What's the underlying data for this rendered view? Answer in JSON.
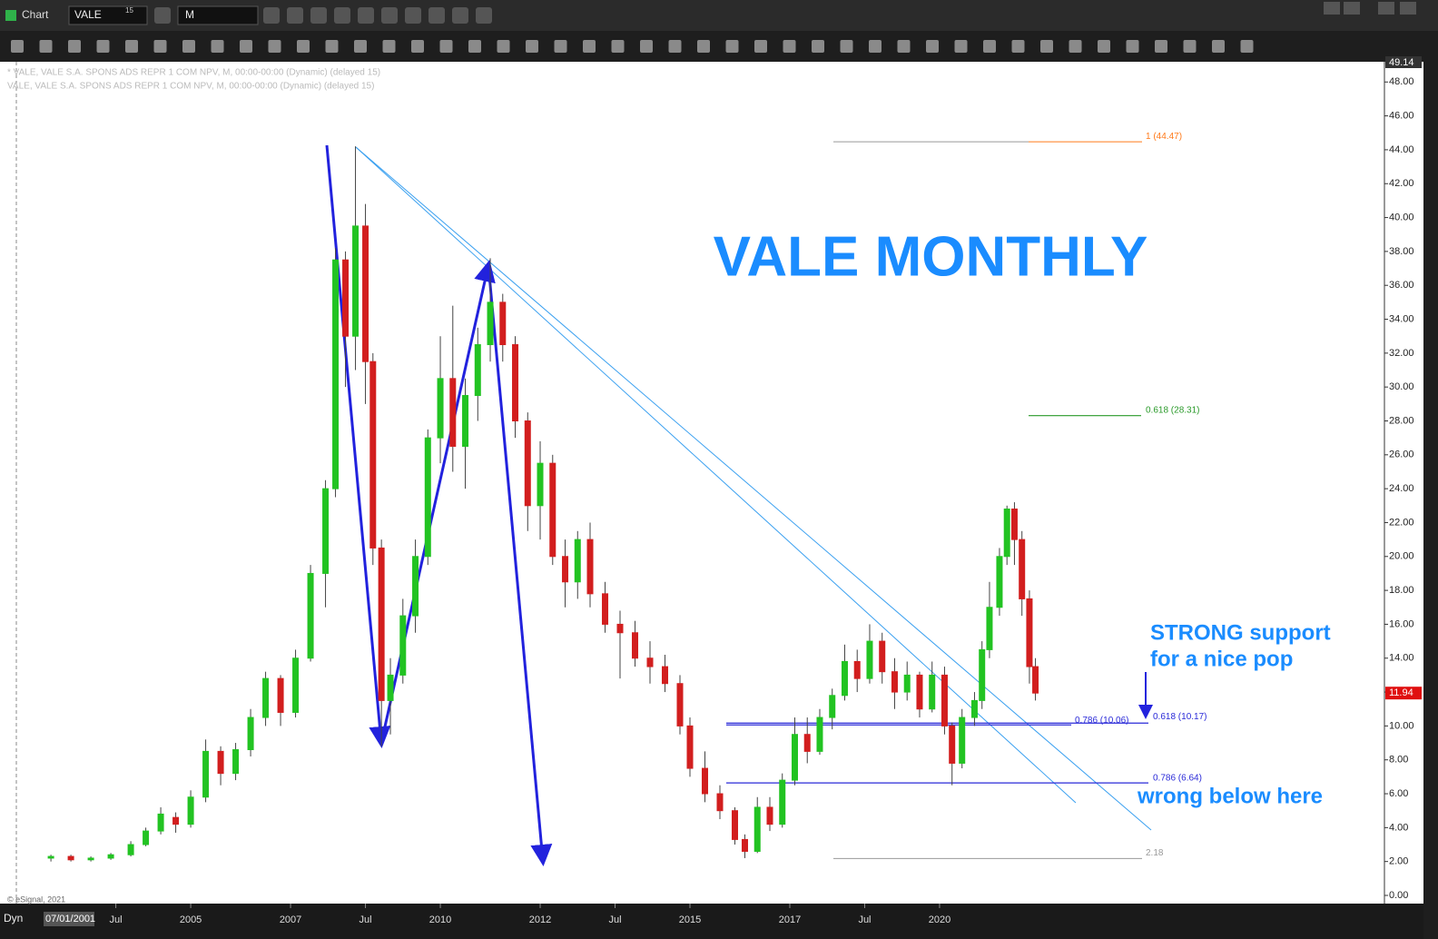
{
  "toolbar": {
    "app_title": "Chart",
    "symbol": "VALE",
    "symbol_badge": "15",
    "interval": "M"
  },
  "footer": {
    "mode": "Dyn",
    "start_date": "07/01/2001",
    "copyright": "© eSignal, 2021"
  },
  "chart_data": {
    "type": "candlestick",
    "title": "VALE MONTHLY",
    "legend_lines": [
      "* VALE, VALE S.A. SPONS ADS REPR 1 COM NPV, M, 00:00-00:00 (Dynamic) (delayed 15)",
      "VALE, VALE S.A. SPONS ADS REPR 1 COM NPV, M, 00:00-00:00 (Dynamic) (delayed 15)"
    ],
    "annotations": [
      "STRONG support",
      "for a nice pop",
      "wrong below here"
    ],
    "up_color": "#22c322",
    "down_color": "#d21e1e",
    "xlim": [
      2001.18,
      2028.82
    ],
    "xticks": [
      {
        "value": 2003.5,
        "label": "Jul"
      },
      2005,
      2007,
      {
        "value": 2008.5,
        "label": "Jul"
      },
      2010,
      2012,
      {
        "value": 2013.5,
        "label": "Jul"
      },
      2015,
      2017,
      {
        "value": 2018.5,
        "label": "Jul"
      },
      2020
    ],
    "ylim": [
      0,
      49.14
    ],
    "yticks": [
      {
        "value": 0,
        "label": "0.00"
      },
      {
        "value": 2,
        "label": "2.00"
      },
      {
        "value": 4,
        "label": "4.00"
      },
      {
        "value": 6,
        "label": "6.00"
      },
      {
        "value": 8,
        "label": "8.00"
      },
      {
        "value": 10,
        "label": "10.00"
      },
      {
        "value": 12,
        "label": "12.00"
      },
      {
        "value": 14,
        "label": "14.00"
      },
      {
        "value": 16,
        "label": "16.00"
      },
      {
        "value": 18,
        "label": "18.00"
      },
      {
        "value": 20,
        "label": "20.00"
      },
      {
        "value": 22,
        "label": "22.00"
      },
      {
        "value": 24,
        "label": "24.00"
      },
      {
        "value": 26,
        "label": "26.00"
      },
      {
        "value": 28,
        "label": "28.00"
      },
      {
        "value": 30,
        "label": "30.00"
      },
      {
        "value": 32,
        "label": "32.00"
      },
      {
        "value": 34,
        "label": "34.00"
      },
      {
        "value": 36,
        "label": "36.00"
      },
      {
        "value": 38,
        "label": "38.00"
      },
      {
        "value": 40,
        "label": "40.00"
      },
      {
        "value": 42,
        "label": "42.00"
      },
      {
        "value": 44,
        "label": "44.00"
      },
      {
        "value": 46,
        "label": "46.00"
      },
      {
        "value": 48,
        "label": "48.00"
      }
    ],
    "last_price": 11.94,
    "fib_levels": [
      {
        "value": 44.47,
        "label": "1 (44.47)",
        "color": "#ff7a1a"
      },
      {
        "value": 28.31,
        "label": "0.618 (28.31)",
        "color": "#2a9a2a"
      },
      {
        "value": 10.06,
        "label": "0.786 (10.06)",
        "color": "#2a2ad8"
      },
      {
        "value": 10.17,
        "label": "0.618 (10.17)",
        "color": "#2a2ad8"
      },
      {
        "value": 6.64,
        "label": "0.786 (6.64)",
        "color": "#2a2ad8"
      },
      {
        "value": 2.18,
        "label": "2.18",
        "color": "#999999"
      }
    ],
    "x": [
      2002.2,
      2002.6,
      2003.0,
      2003.4,
      2003.8,
      2004.1,
      2004.4,
      2004.7,
      2005.0,
      2005.3,
      2005.6,
      2005.9,
      2006.2,
      2006.5,
      2006.8,
      2007.1,
      2007.4,
      2007.7,
      2007.9,
      2008.1,
      2008.3,
      2008.5,
      2008.65,
      2008.82,
      2009.0,
      2009.25,
      2009.5,
      2009.75,
      2010.0,
      2010.25,
      2010.5,
      2010.75,
      2011.0,
      2011.25,
      2011.5,
      2011.75,
      2012.0,
      2012.25,
      2012.5,
      2012.75,
      2013.0,
      2013.3,
      2013.6,
      2013.9,
      2014.2,
      2014.5,
      2014.8,
      2015.0,
      2015.3,
      2015.6,
      2015.9,
      2016.1,
      2016.35,
      2016.6,
      2016.85,
      2017.1,
      2017.35,
      2017.6,
      2017.85,
      2018.1,
      2018.35,
      2018.6,
      2018.85,
      2019.1,
      2019.35,
      2019.6,
      2019.85,
      2020.1,
      2020.25,
      2020.45,
      2020.7,
      2020.85,
      2021.0,
      2021.2,
      2021.35,
      2021.5,
      2021.65,
      2021.8,
      2021.92
    ],
    "open": [
      2.2,
      2.3,
      2.1,
      2.2,
      2.4,
      3.0,
      3.8,
      4.6,
      4.2,
      5.8,
      8.5,
      7.2,
      8.6,
      10.5,
      12.8,
      10.8,
      14.0,
      19.0,
      24.0,
      37.5,
      33.0,
      39.5,
      31.5,
      20.5,
      11.5,
      13.0,
      16.5,
      20.0,
      27.0,
      30.5,
      26.5,
      29.5,
      32.5,
      35.0,
      32.5,
      28.0,
      23.0,
      25.5,
      20.0,
      18.5,
      21.0,
      17.8,
      16.0,
      15.5,
      14.0,
      13.5,
      12.5,
      10.0,
      7.5,
      6.0,
      5.0,
      3.3,
      2.6,
      5.2,
      4.2,
      6.8,
      9.5,
      8.5,
      10.5,
      11.8,
      13.8,
      12.8,
      15.0,
      13.2,
      12.0,
      13.0,
      11.0,
      13.0,
      10.0,
      7.8,
      10.5,
      11.5,
      14.5,
      17.0,
      20.0,
      22.8,
      21.0,
      17.5,
      13.5
    ],
    "high": [
      2.4,
      2.4,
      2.3,
      2.5,
      3.2,
      4.0,
      5.2,
      4.9,
      6.2,
      9.2,
      8.8,
      9.0,
      11.0,
      13.2,
      13.0,
      14.5,
      19.5,
      24.5,
      38.2,
      38.0,
      44.2,
      40.8,
      32.0,
      21.0,
      14.0,
      17.5,
      21.0,
      27.5,
      33.0,
      34.8,
      30.5,
      33.5,
      37.6,
      35.5,
      33.0,
      28.5,
      26.8,
      26.0,
      21.0,
      21.5,
      22.0,
      18.5,
      16.8,
      16.2,
      15.0,
      14.2,
      13.0,
      10.5,
      8.5,
      6.5,
      5.2,
      3.6,
      5.8,
      5.8,
      7.2,
      10.5,
      10.5,
      11.0,
      12.2,
      14.8,
      14.5,
      16.0,
      15.5,
      14.0,
      13.8,
      13.2,
      13.8,
      13.5,
      10.2,
      11.0,
      12.0,
      15.0,
      18.5,
      20.5,
      23.0,
      23.2,
      21.5,
      18.0,
      14.0
    ],
    "low": [
      2.0,
      2.0,
      2.0,
      2.1,
      2.3,
      2.9,
      3.6,
      3.7,
      4.0,
      5.5,
      6.5,
      6.8,
      8.2,
      10.0,
      10.0,
      10.5,
      13.8,
      17.0,
      23.5,
      30.0,
      31.0,
      29.0,
      19.5,
      8.8,
      9.5,
      12.5,
      15.5,
      19.5,
      25.5,
      25.0,
      24.0,
      28.0,
      31.5,
      31.5,
      27.0,
      21.5,
      21.0,
      19.5,
      17.0,
      17.5,
      17.0,
      15.5,
      12.8,
      13.5,
      12.5,
      12.0,
      9.5,
      7.0,
      5.5,
      4.5,
      3.0,
      2.2,
      2.5,
      3.8,
      4.0,
      6.5,
      7.8,
      8.3,
      9.8,
      11.5,
      12.0,
      12.5,
      12.5,
      11.0,
      11.5,
      10.5,
      10.8,
      9.5,
      6.5,
      7.5,
      10.0,
      11.0,
      14.0,
      16.5,
      19.5,
      19.5,
      16.5,
      12.5,
      11.5
    ],
    "close": [
      2.3,
      2.1,
      2.2,
      2.4,
      3.0,
      3.8,
      4.8,
      4.2,
      5.8,
      8.5,
      7.2,
      8.6,
      10.5,
      12.8,
      10.8,
      14.0,
      19.0,
      24.0,
      37.5,
      33.0,
      39.5,
      31.5,
      20.5,
      11.5,
      13.0,
      16.5,
      20.0,
      27.0,
      30.5,
      26.5,
      29.5,
      32.5,
      35.0,
      32.5,
      28.0,
      23.0,
      25.5,
      20.0,
      18.5,
      21.0,
      17.8,
      16.0,
      15.5,
      14.0,
      13.5,
      12.5,
      10.0,
      7.5,
      6.0,
      5.0,
      3.3,
      2.6,
      5.2,
      4.2,
      6.8,
      9.5,
      8.5,
      10.5,
      11.8,
      13.8,
      12.8,
      15.0,
      13.2,
      12.0,
      13.0,
      11.0,
      13.0,
      10.0,
      7.8,
      10.5,
      11.5,
      14.5,
      17.0,
      20.0,
      22.8,
      21.0,
      17.5,
      13.5,
      11.94
    ]
  }
}
